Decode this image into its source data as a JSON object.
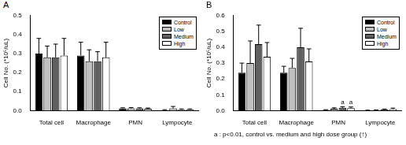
{
  "chart_data": [
    {
      "type": "bar",
      "title": "A",
      "y_label": "Cell No. (*10⁵/uL)",
      "categories": [
        "Total cell",
        "Macrophage",
        "PMN",
        "Lympocyte"
      ],
      "series": [
        {
          "name": "Control",
          "color": "#000000",
          "values": [
            0.3,
            0.29,
            0.012,
            0.003
          ],
          "errors": [
            0.08,
            0.07,
            0.003,
            0.002
          ]
        },
        {
          "name": "Low",
          "color": "#c0c0c0",
          "values": [
            0.28,
            0.26,
            0.012,
            0.012
          ],
          "errors": [
            0.06,
            0.06,
            0.004,
            0.01
          ]
        },
        {
          "name": "Medium",
          "color": "#606060",
          "values": [
            0.28,
            0.26,
            0.012,
            0.005
          ],
          "errors": [
            0.07,
            0.05,
            0.003,
            0.004
          ]
        },
        {
          "name": "High",
          "color": "#ffffff",
          "values": [
            0.29,
            0.28,
            0.01,
            0.006
          ],
          "errors": [
            0.09,
            0.08,
            0.004,
            0.003
          ]
        }
      ],
      "ylim": [
        0,
        0.5
      ],
      "yticks": [
        {
          "value": 0,
          "label": "0.0"
        },
        0.1,
        0.2,
        0.3,
        0.4,
        0.5
      ],
      "grid": false,
      "legend": "upper right"
    },
    {
      "type": "bar",
      "title": "B",
      "y_label": "Cell No. (*10⁵/uL)",
      "categories": [
        "Total cell",
        "Macrophage",
        "PMN",
        "Lympocyte"
      ],
      "series": [
        {
          "name": "Control",
          "color": "#000000",
          "values": [
            0.24,
            0.24,
            0.004,
            0.002
          ],
          "errors": [
            0.06,
            0.04,
            0.002,
            0.001
          ]
        },
        {
          "name": "Low",
          "color": "#c0c0c0",
          "values": [
            0.3,
            0.27,
            0.012,
            0.003
          ],
          "errors": [
            0.14,
            0.06,
            0.006,
            0.002
          ]
        },
        {
          "name": "Medium",
          "color": "#606060",
          "values": [
            0.42,
            0.4,
            0.018,
            0.007
          ],
          "errors": [
            0.12,
            0.12,
            0.006,
            0.003
          ]
        },
        {
          "name": "High",
          "color": "#ffffff",
          "values": [
            0.34,
            0.31,
            0.016,
            0.01
          ],
          "errors": [
            0.09,
            0.08,
            0.007,
            0.006
          ]
        }
      ],
      "ylim": [
        0,
        0.6
      ],
      "yticks": [
        {
          "value": 0,
          "label": "0.0"
        },
        0.1,
        0.2,
        0.3,
        0.4,
        0.5,
        0.6
      ],
      "grid": false,
      "legend": "upper right",
      "annotations": [
        {
          "text": "a",
          "category": "PMN",
          "series": "Medium"
        },
        {
          "text": "a",
          "category": "PMN",
          "series": "High"
        }
      ],
      "footnote": "a : p<0.01, control vs. medium and high dose group (↑)"
    }
  ]
}
